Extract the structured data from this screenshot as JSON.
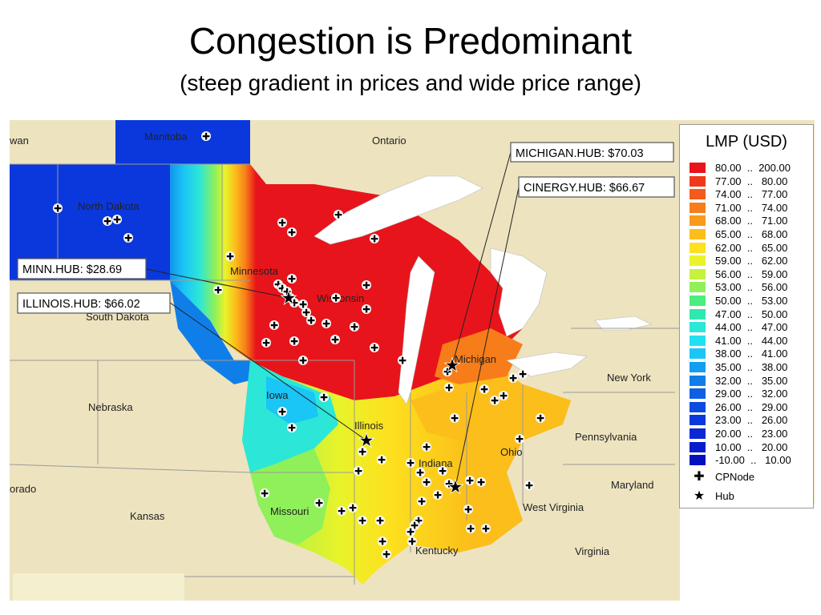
{
  "title": "Congestion is Predominant",
  "subtitle": "(steep gradient in prices and wide price range)",
  "map_labels": {
    "iowa_cut": "wan",
    "manitoba": "Manitoba",
    "ontario": "Ontario",
    "north_dakota": "North Dakota",
    "minnesota": "Minnesota",
    "south_dakota": "South Dakota",
    "wisconsin": "Wisconsin",
    "michigan": "Michigan",
    "iowa": "Iowa",
    "nebraska": "Nebraska",
    "illinois": "Illinois",
    "indiana": "Indiana",
    "ohio": "Ohio",
    "new_york": "New York",
    "pennsylvania": "Pennsylvania",
    "colorado_cut": "orado",
    "kansas": "Kansas",
    "missouri": "Missouri",
    "kentucky": "Kentucky",
    "west_virginia": "West Virginia",
    "virginia": "Virginia",
    "maryland": "Maryland"
  },
  "hubs": [
    {
      "label": "MICHIGAN.HUB: $70.03",
      "name": "MICHIGAN.HUB",
      "lmp": 70.03
    },
    {
      "label": "CINERGY.HUB: $66.67",
      "name": "CINERGY.HUB",
      "lmp": 66.67
    },
    {
      "label": "MINN.HUB: $28.69",
      "name": "MINN.HUB",
      "lmp": 28.69
    },
    {
      "label": "ILLINOIS.HUB: $66.02",
      "name": "ILLINOIS.HUB",
      "lmp": 66.02
    }
  ],
  "legend": {
    "title": "LMP (USD)",
    "ranges": [
      {
        "label": "80.00  ..  200.00",
        "color": "#e8141b"
      },
      {
        "label": "77.00  ..   80.00",
        "color": "#f0381a"
      },
      {
        "label": "74.00  ..   77.00",
        "color": "#f55a1a"
      },
      {
        "label": "71.00  ..   74.00",
        "color": "#f77d1a"
      },
      {
        "label": "68.00  ..   71.00",
        "color": "#f99a1a"
      },
      {
        "label": "65.00  ..   68.00",
        "color": "#fbbe1a"
      },
      {
        "label": "62.00  ..   65.00",
        "color": "#fde01e"
      },
      {
        "label": "59.00  ..   62.00",
        "color": "#e9f32a"
      },
      {
        "label": "56.00  ..   59.00",
        "color": "#c6f23c"
      },
      {
        "label": "53.00  ..   56.00",
        "color": "#8ff05a"
      },
      {
        "label": "50.00  ..   53.00",
        "color": "#4aee7e"
      },
      {
        "label": "47.00  ..   50.00",
        "color": "#2fe8ae"
      },
      {
        "label": "44.00  ..   47.00",
        "color": "#2ce6d8"
      },
      {
        "label": "41.00  ..   44.00",
        "color": "#22e0f2"
      },
      {
        "label": "38.00  ..   41.00",
        "color": "#1ac6f5"
      },
      {
        "label": "35.00  ..   38.00",
        "color": "#139ef2"
      },
      {
        "label": "32.00  ..   35.00",
        "color": "#107ee8"
      },
      {
        "label": "29.00  ..   32.00",
        "color": "#0f5fe6"
      },
      {
        "label": "26.00  ..   29.00",
        "color": "#0d4ae2"
      },
      {
        "label": "23.00  ..   26.00",
        "color": "#0b38dc"
      },
      {
        "label": "20.00  ..   23.00",
        "color": "#0928d6"
      },
      {
        "label": "10.00  ..   20.00",
        "color": "#071ccc"
      },
      {
        "label": "-10.00  ..   10.00",
        "color": "#0410c0"
      }
    ],
    "cpnode_label": "CPNode",
    "hub_label": "Hub"
  }
}
